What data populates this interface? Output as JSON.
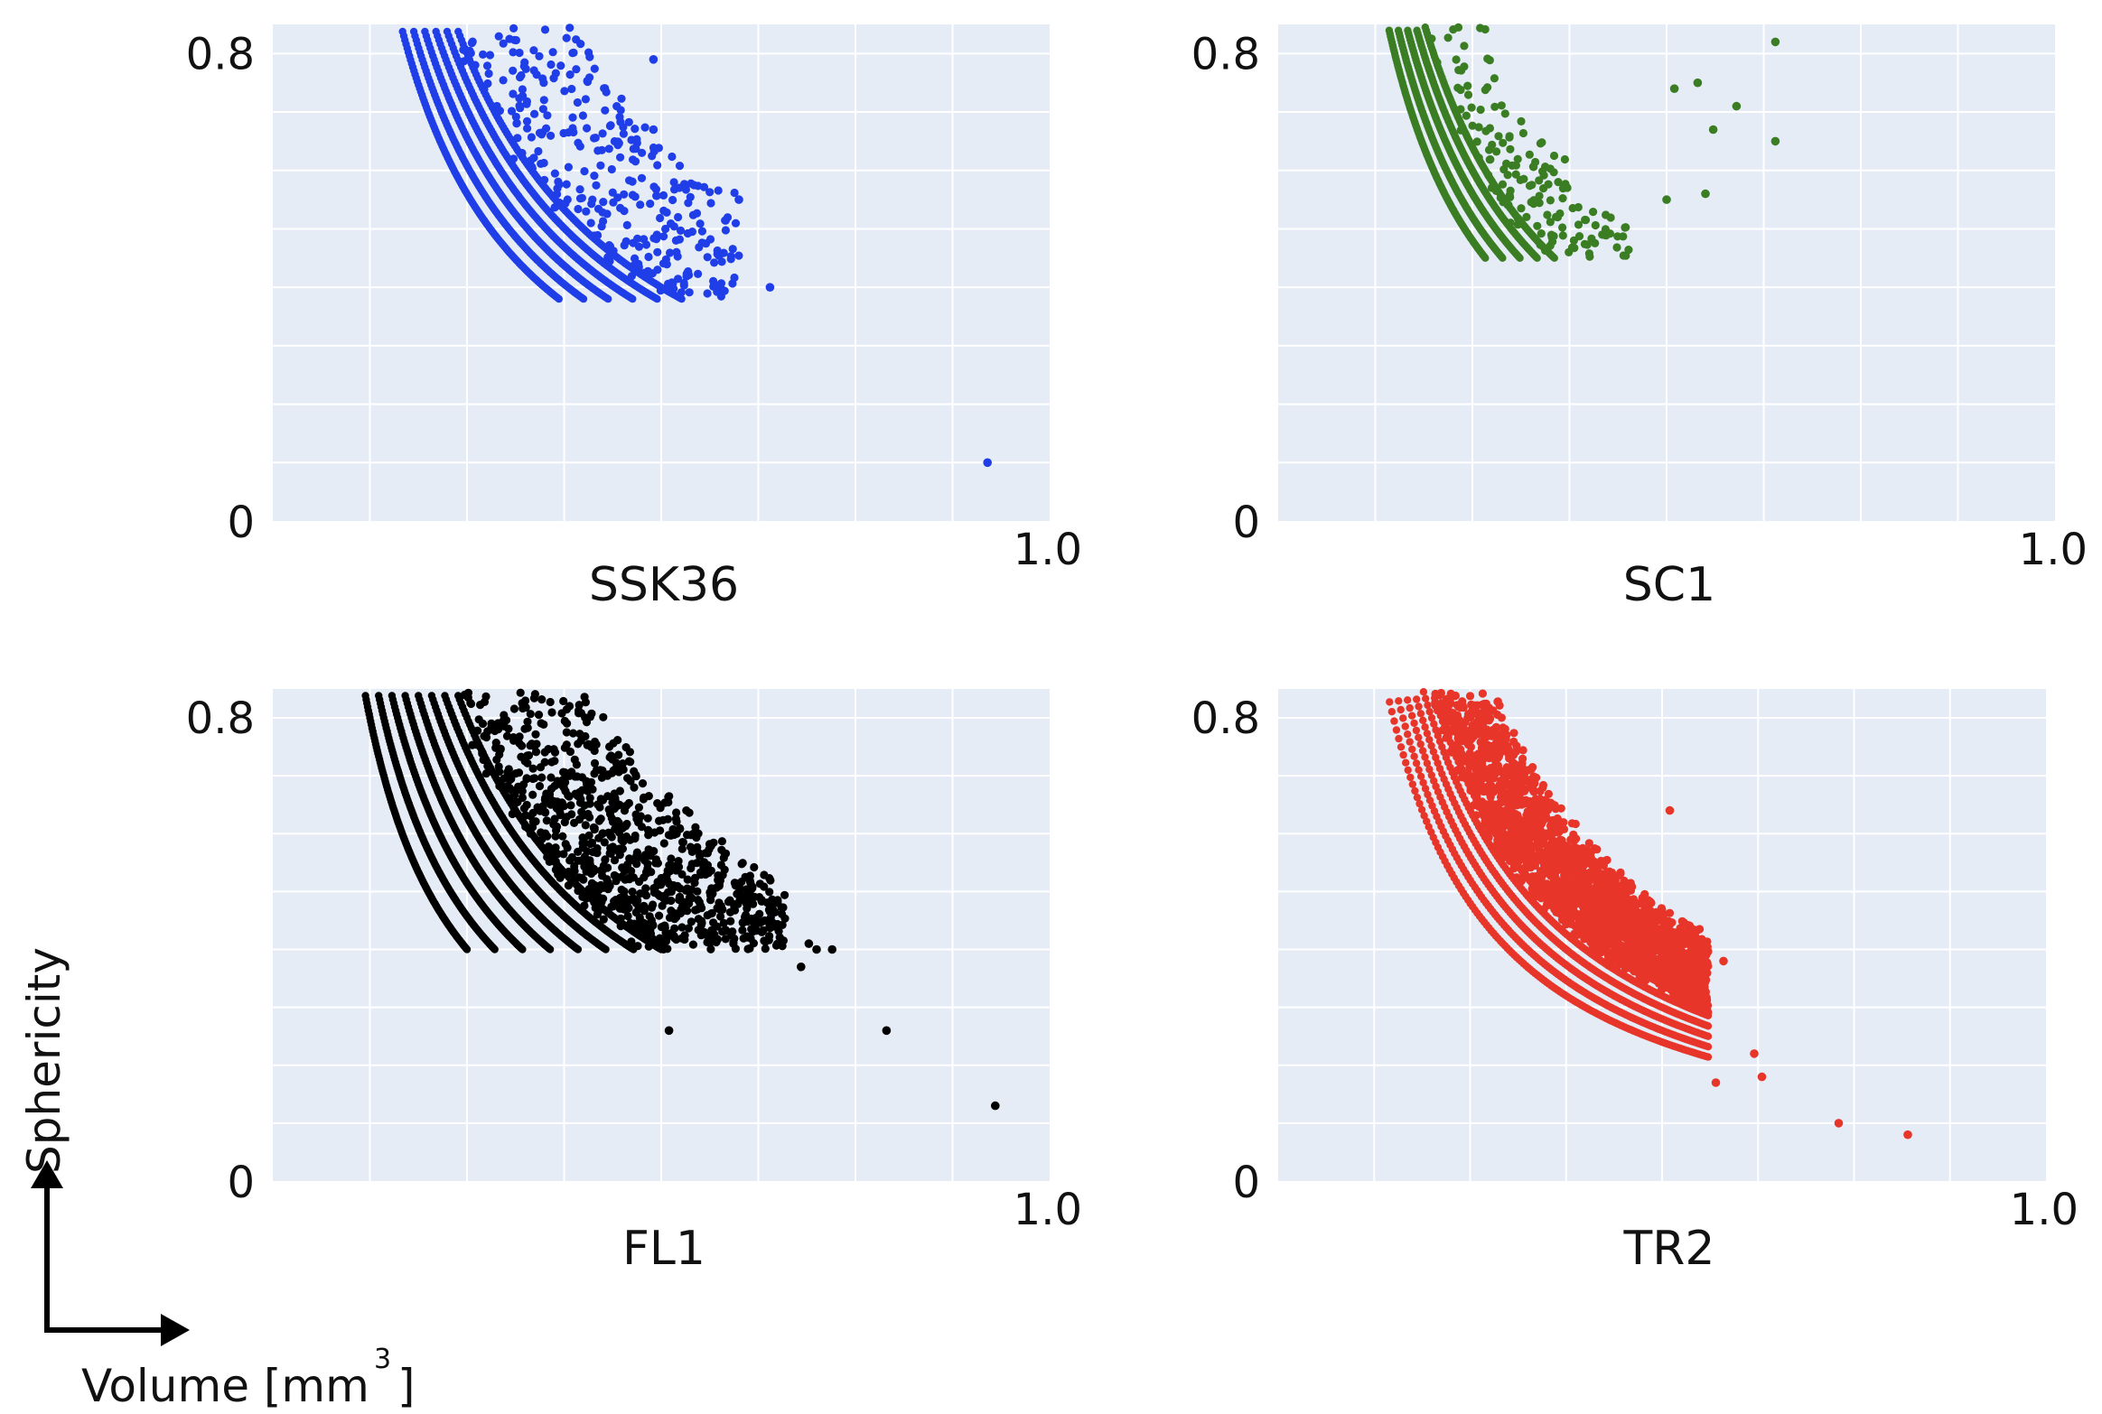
{
  "figure": {
    "y_axis_label": "Sphericity",
    "x_axis_label": "Volume [mm",
    "x_axis_label_exponent": "3",
    "x_axis_label_close": "]"
  },
  "chart_data": [
    {
      "type": "scatter",
      "title": "SSK36",
      "color": "#1f3ee8",
      "xlim": [
        0,
        1.0
      ],
      "ylim": [
        0,
        0.85
      ],
      "ytick_labels": [
        "0",
        "0.8"
      ],
      "xtick_labels": [
        "1.0"
      ],
      "grid": true,
      "outliers": [
        [
          0.49,
          0.79
        ],
        [
          0.49,
          0.67
        ],
        [
          0.6,
          0.55
        ],
        [
          0.64,
          0.4
        ],
        [
          0.92,
          0.1
        ]
      ],
      "cloud": {
        "band_count": 6,
        "band_k_min": 0.14,
        "band_k_max": 0.2,
        "scatter_count": 320,
        "scatter_k_min": 0.2,
        "scatter_k_max": 0.32,
        "x_max": 0.6,
        "y_min": 0.38
      }
    },
    {
      "type": "scatter",
      "title": "SC1",
      "color": "#3a7d23",
      "xlim": [
        0,
        1.0
      ],
      "ylim": [
        0,
        0.85
      ],
      "ytick_labels": [
        "0",
        "0.8"
      ],
      "xtick_labels": [
        "1.0"
      ],
      "grid": true,
      "outliers": [
        [
          0.64,
          0.82
        ],
        [
          0.64,
          0.65
        ],
        [
          0.59,
          0.71
        ],
        [
          0.56,
          0.67
        ],
        [
          0.54,
          0.75
        ],
        [
          0.51,
          0.74
        ],
        [
          0.5,
          0.55
        ],
        [
          0.55,
          0.56
        ]
      ],
      "cloud": {
        "band_count": 5,
        "band_k_min": 0.12,
        "band_k_max": 0.16,
        "scatter_count": 160,
        "scatter_k_min": 0.16,
        "scatter_k_max": 0.22,
        "x_max": 0.52,
        "y_min": 0.45
      }
    },
    {
      "type": "scatter",
      "title": "FL1",
      "color": "#000000",
      "xlim": [
        0,
        1.0
      ],
      "ylim": [
        0,
        0.85
      ],
      "ytick_labels": [
        "0",
        "0.8"
      ],
      "xtick_labels": [
        "1.0"
      ],
      "grid": true,
      "outliers": [
        [
          0.51,
          0.26
        ],
        [
          0.79,
          0.26
        ],
        [
          0.93,
          0.13
        ],
        [
          0.69,
          0.41
        ],
        [
          0.7,
          0.4
        ],
        [
          0.72,
          0.4
        ],
        [
          0.68,
          0.37
        ]
      ],
      "cloud": {
        "band_count": 8,
        "band_k_min": 0.1,
        "band_k_max": 0.2,
        "scatter_count": 900,
        "scatter_k_min": 0.2,
        "scatter_k_max": 0.33,
        "x_max": 0.66,
        "y_min": 0.4
      }
    },
    {
      "type": "scatter",
      "title": "TR2",
      "color": "#e8352a",
      "xlim": [
        0,
        1.0
      ],
      "ylim": [
        0,
        0.85
      ],
      "ytick_labels": [
        "0",
        "0.8"
      ],
      "xtick_labels": [
        "1.0"
      ],
      "grid": true,
      "outliers": [
        [
          0.51,
          0.64
        ],
        [
          0.58,
          0.38
        ],
        [
          0.62,
          0.22
        ],
        [
          0.63,
          0.18
        ],
        [
          0.57,
          0.17
        ],
        [
          0.73,
          0.1
        ],
        [
          0.82,
          0.08
        ]
      ],
      "cloud": {
        "band_count": 6,
        "band_k_min": 0.12,
        "band_k_max": 0.17,
        "scatter_count": 2200,
        "scatter_k_min": 0.17,
        "scatter_k_max": 0.23,
        "x_max": 0.56,
        "y_min": 0.18
      }
    }
  ]
}
